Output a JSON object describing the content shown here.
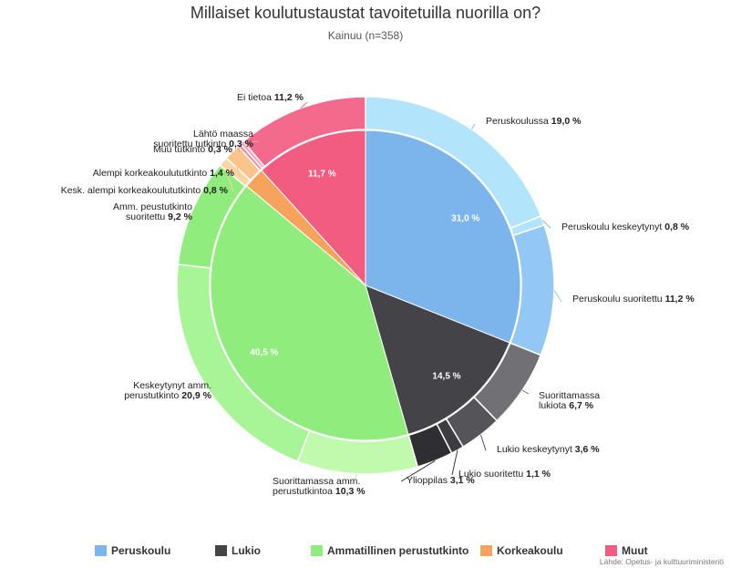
{
  "chart_data": {
    "type": "pie",
    "title": "Millaiset koulutustaustat tavoitetuilla nuorilla on?",
    "subtitle": "Kainuu (n=358)",
    "inner": [
      {
        "name": "Peruskoulu",
        "value": 31.0,
        "label": "31,0 %",
        "color": "#7cb5ec"
      },
      {
        "name": "Lukio",
        "value": 14.5,
        "label": "14,5 %",
        "color": "#434348"
      },
      {
        "name": "Ammatillinen perustutkinto",
        "value": 40.5,
        "label": "40,5 %",
        "color": "#90ed7d"
      },
      {
        "name": "Korkeakoulu",
        "value": 2.2,
        "label": "",
        "color": "#f7a35c"
      },
      {
        "name": "Muut",
        "value": 11.7,
        "label": "11,7 %",
        "color": "#f15c80"
      }
    ],
    "outer": [
      {
        "name": "Peruskoulussa",
        "value": 19.0,
        "label": "19,0 %",
        "color": "#b2e4fb"
      },
      {
        "name": "Peruskoulu keskeytynyt",
        "value": 0.8,
        "label": "0,8 %",
        "color": "#b2e4fb"
      },
      {
        "name": "Peruskoulu suoritettu",
        "value": 11.2,
        "label": "11,2 %",
        "color": "#93c8f5"
      },
      {
        "name": "Suorittamassa lukiota",
        "value": 6.7,
        "label": "6,7 %",
        "color": "#707075"
      },
      {
        "name": "Lukio keskeytynyt",
        "value": 3.6,
        "label": "3,6 %",
        "color": "#545459"
      },
      {
        "name": "Lukio suoritettu",
        "value": 1.1,
        "label": "1,1 %",
        "color": "#3c3c41"
      },
      {
        "name": "Ylioppilas",
        "value": 3.1,
        "label": "3,1 %",
        "color": "#2e2e33"
      },
      {
        "name": "Suorittamassa amm. perustutkintoa",
        "value": 10.3,
        "label": "10,3 %",
        "color": "#c0fbad"
      },
      {
        "name": "Keskeytynyt amm. perustutkinto",
        "value": 20.9,
        "label": "20,9 %",
        "color": "#a8f598"
      },
      {
        "name": "Amm. peustutkinto suoritettu",
        "value": 9.2,
        "label": "9,2 %",
        "color": "#90ed7d"
      },
      {
        "name": "Kesk. alempi korkeakoulututkinto",
        "value": 0.8,
        "label": "0,8 %",
        "color": "#fcd3a3"
      },
      {
        "name": "Alempi korkeakoulututkinto",
        "value": 1.4,
        "label": "1,4 %",
        "color": "#fbc48c"
      },
      {
        "name": "Muu tutkinto",
        "value": 0.3,
        "label": "0,3 %",
        "color": "#f4879f"
      },
      {
        "name": "Lähtö maassa suoritettu tutkinto",
        "value": 0.3,
        "label": "0,3 %",
        "color": "#f7a1b4"
      },
      {
        "name": "Ei tietoa",
        "value": 11.2,
        "label": "11,2 %",
        "color": "#f46a8c"
      }
    ],
    "legend": [
      "Peruskoulu",
      "Lukio",
      "Ammatillinen perustutkinto",
      "Korkeakoulu",
      "Muut"
    ],
    "legend_position": "bottom"
  },
  "credits": "Lähde: Opetus- ja kulttuuriministeriö"
}
